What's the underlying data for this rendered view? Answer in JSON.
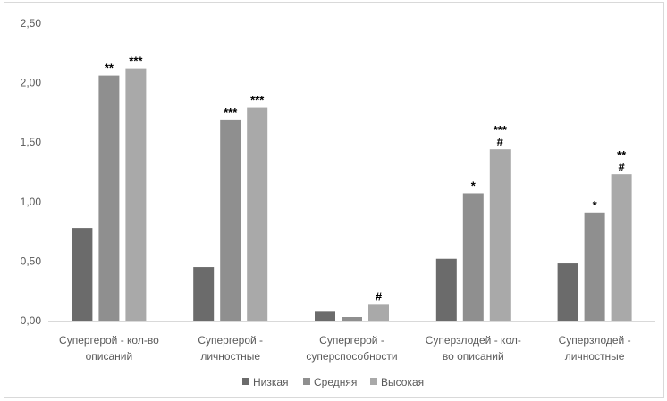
{
  "chart_data": {
    "type": "bar",
    "categories": [
      [
        "Супергерой - кол-во",
        "описаний"
      ],
      [
        "Супергерой -",
        "личностные"
      ],
      [
        "Супергерой -",
        "суперспособности"
      ],
      [
        "Суперзлодей - кол-",
        "во описаний"
      ],
      [
        "Суперзлодей -",
        "личностные"
      ]
    ],
    "series": [
      {
        "name": "Низкая",
        "color": "#6b6b6b",
        "values": [
          0.78,
          0.45,
          0.08,
          0.52,
          0.48
        ]
      },
      {
        "name": "Средняя",
        "color": "#8f8f8f",
        "values": [
          2.06,
          1.69,
          0.03,
          1.07,
          0.91
        ]
      },
      {
        "name": "Высокая",
        "color": "#a9a9a9",
        "values": [
          2.12,
          1.79,
          0.14,
          1.44,
          1.23
        ]
      }
    ],
    "annotations": [
      [
        "",
        "**",
        "***"
      ],
      [
        "",
        "***",
        "***"
      ],
      [
        "",
        "",
        "#"
      ],
      [
        "",
        "*",
        "***\n#"
      ],
      [
        "",
        "*",
        "**\n#"
      ]
    ],
    "ylim": [
      0,
      2.5
    ],
    "yticks": [
      "0,00",
      "0,50",
      "1,00",
      "1,50",
      "2,00",
      "2,50"
    ],
    "ytick_values": [
      0,
      0.5,
      1.0,
      1.5,
      2.0,
      2.5
    ],
    "grid": false,
    "legend_position": "bottom"
  }
}
